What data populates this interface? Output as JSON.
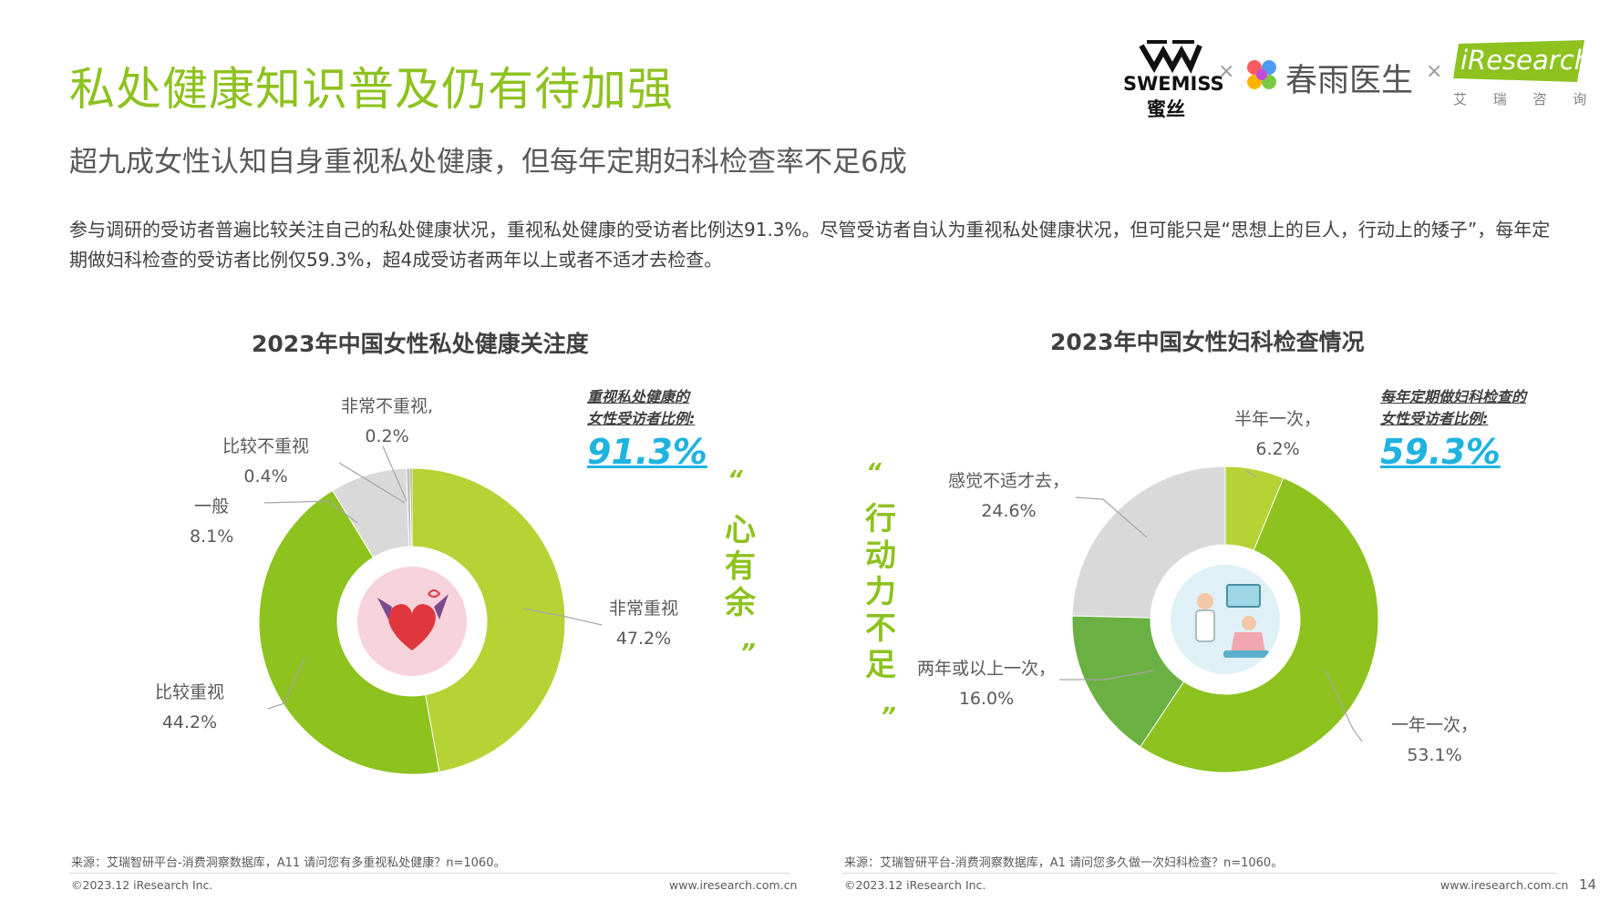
{
  "header": {
    "title": "私处健康知识普及仍有待加强",
    "subtitle": "超九成女性认知自身重视私处健康，但每年定期妇科检查率不足6成",
    "intro": "参与调研的受访者普遍比较关注自己的私处健康状况，重视私处健康的受访者比例达91.3%。尽管受访者自认为重视私处健康状况，但可能只是“思想上的巨人，行动上的矮子”，每年定期做妇科检查的受访者比例仅59.3%，超4成受访者两年以上或者不适才去检查。"
  },
  "logos": {
    "swemiss_en": "SWEMISS",
    "swemiss_cn": "蜜丝",
    "times1": "×",
    "chunyu": "春雨医生",
    "times2": "×",
    "iresearch": "iResearch",
    "iresearch_cn": "艾 瑞 咨 询"
  },
  "colors": {
    "green_main": "#8dc21f",
    "green_light": "#b5d334",
    "green_dark": "#6ab043",
    "gray": "#d9d9d9",
    "accent_blue": "#1fb3e0"
  },
  "chart_data": [
    {
      "type": "pie",
      "title": "2023年中国女性私处健康关注度",
      "categories": [
        "非常重视",
        "比较重视",
        "一般",
        "比较不重视",
        "非常不重视"
      ],
      "values": [
        47.2,
        44.2,
        8.1,
        0.4,
        0.2
      ],
      "colors": [
        "#b5d334",
        "#8dc21f",
        "#d9d9d9",
        "#bfbfbf",
        "#8c8c3a"
      ],
      "labels": [
        {
          "name": "非常重视",
          "value": "47.2%"
        },
        {
          "name": "比较重视",
          "value": "44.2%"
        },
        {
          "name": "一般",
          "value": "8.1%"
        },
        {
          "name": "比较不重视",
          "value": "0.4%"
        },
        {
          "name": "非常不重视,",
          "value": "0.2%"
        }
      ],
      "stat_caption_1": "重视私处健康的",
      "stat_caption_2": "女性受访者比例:",
      "stat_value": "91.3%",
      "source": "来源：艾瑞智研平台-消费洞察数据库，A11 请问您有多重视私处健康？n=1060。",
      "copyright": "©2023.12 iResearch Inc.",
      "website": "www.iresearch.com.cn"
    },
    {
      "type": "pie",
      "title": "2023年中国女性妇科检查情况",
      "categories": [
        "半年一次",
        "一年一次",
        "两年或以上一次",
        "感觉不适才去"
      ],
      "values": [
        6.2,
        53.1,
        16.0,
        24.6
      ],
      "colors": [
        "#b5d334",
        "#8dc21f",
        "#6ab043",
        "#d9d9d9"
      ],
      "labels": [
        {
          "name": "半年一次，",
          "value": "6.2%"
        },
        {
          "name": "一年一次，",
          "value": "53.1%"
        },
        {
          "name": "两年或以上一次，",
          "value": "16.0%"
        },
        {
          "name": "感觉不适才去，",
          "value": "24.6%"
        }
      ],
      "stat_caption_1": "每年定期做妇科检查的",
      "stat_caption_2": "女性受访者比例:",
      "stat_value": "59.3%",
      "source": "来源：艾瑞智研平台-消费洞察数据库，A1 请问您多久做一次妇科检查？n=1060。",
      "copyright": "©2023.12 iResearch Inc.",
      "website": "www.iresearch.com.cn"
    }
  ],
  "center_text": {
    "left_quote_open": "“",
    "left_chars": [
      "心",
      "有",
      "余"
    ],
    "left_quote_close": "”",
    "right_quote_open": "“",
    "right_chars": [
      "行",
      "动",
      "力",
      "不",
      "足"
    ],
    "right_quote_close": "”"
  },
  "page_number": "14"
}
